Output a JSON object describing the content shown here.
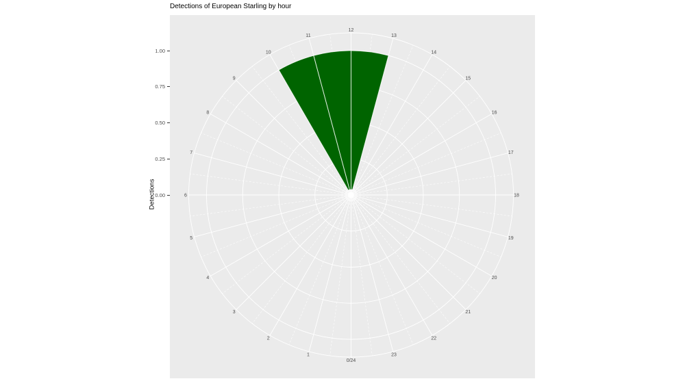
{
  "title": "Detections of European Starling by hour",
  "y_axis": {
    "title": "Detections",
    "tick_labels": [
      "0.00",
      "0.25",
      "0.50",
      "0.75",
      "1.00"
    ]
  },
  "colors": {
    "bar_fill": "#006400",
    "bar_border": "rgba(255,255,255,0.78)",
    "panel_bg": "#ebebeb",
    "grid": "#ffffff",
    "axis_text": "#4d4d4d",
    "title_text": "#000000",
    "tick_mark": "#333333"
  },
  "chart_data": {
    "type": "bar",
    "coord": "polar",
    "title": "Detections of European Starling by hour",
    "ylabel": "Detections",
    "ylim": [
      0,
      1
    ],
    "y_major_breaks": [
      0.25,
      0.5,
      0.75,
      1.0
    ],
    "theta_labels": [
      "0/24",
      "1",
      "2",
      "3",
      "4",
      "5",
      "6",
      "7",
      "8",
      "9",
      "10",
      "11",
      "12",
      "13",
      "14",
      "15",
      "16",
      "17",
      "18",
      "19",
      "20",
      "21",
      "22",
      "23"
    ],
    "categories": [
      0,
      1,
      2,
      3,
      4,
      5,
      6,
      7,
      8,
      9,
      10,
      11,
      12,
      13,
      14,
      15,
      16,
      17,
      18,
      19,
      20,
      21,
      22,
      23
    ],
    "values": [
      0,
      0,
      0,
      0,
      0,
      0,
      0,
      0,
      0,
      0,
      1.0,
      1.0,
      1.0,
      0,
      0,
      0,
      0,
      0,
      0,
      0,
      0,
      0,
      0,
      0
    ],
    "series_name": "Detections",
    "layout": {
      "theta_zero_position": "top",
      "direction": "clockwise",
      "grid": "on",
      "hours_per_revolution": 24
    }
  }
}
